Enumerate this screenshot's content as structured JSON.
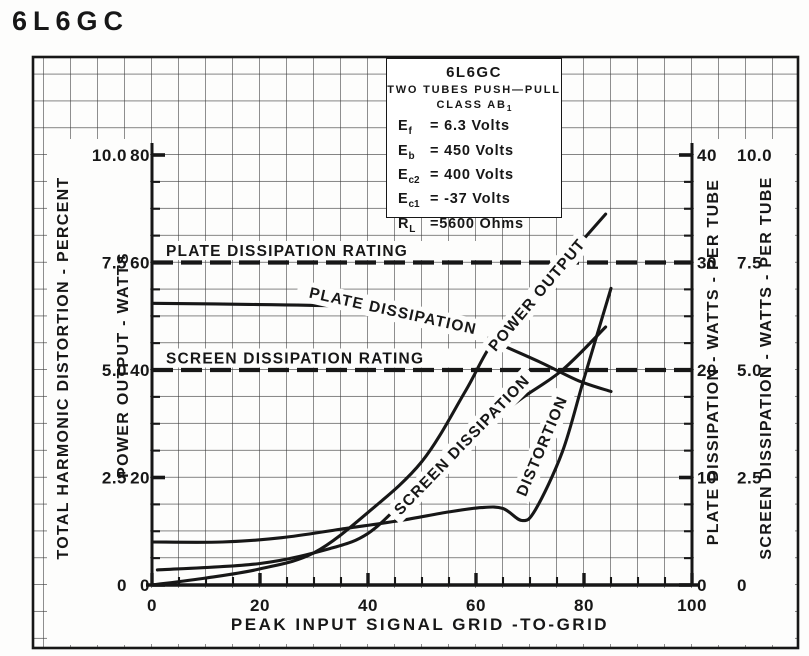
{
  "page_title": "6L6GC",
  "info_box": {
    "title": "6L6GC",
    "subtitle": "TWO TUBES PUSH—PULL",
    "class_label": "CLASS AB",
    "class_sub": "1",
    "conditions": [
      {
        "sym": "E",
        "sub": "f",
        "val": "= 6.3 Volts"
      },
      {
        "sym": "E",
        "sub": "b",
        "val": "= 450 Volts"
      },
      {
        "sym": "E",
        "sub": "c2",
        "val": "= 400 Volts"
      },
      {
        "sym": "E",
        "sub": "c1",
        "val": "= -37 Volts"
      },
      {
        "sym": "R",
        "sub": "L",
        "val": "=5600 Ohms"
      }
    ]
  },
  "axes": {
    "x": {
      "title": "PEAK INPUT SIGNAL GRID -TO-GRID",
      "ticks": [
        "0",
        "20",
        "40",
        "60",
        "80",
        "100"
      ]
    },
    "left_outer": {
      "title": "TOTAL HARMONIC DISTORTION - PERCENT",
      "ticks": [
        "0",
        "2.5",
        "5.0",
        "7.5",
        "10.0"
      ]
    },
    "left_inner": {
      "title": "POWER OUTPUT - WATTS",
      "ticks": [
        "0",
        "20",
        "40",
        "60",
        "80"
      ]
    },
    "right_inner": {
      "title": "PLATE DISSIPATION - WATTS - PER TUBE",
      "ticks": [
        "0",
        "10",
        "20",
        "30",
        "40"
      ]
    },
    "right_outer": {
      "title": "SCREEN DISSIPATION - WATTS - PER TUBE",
      "ticks": [
        "0",
        "2.5",
        "5.0",
        "7.5",
        "10.0"
      ]
    }
  },
  "chart_data": {
    "type": "line",
    "x": {
      "label": "PEAK INPUT SIGNAL GRID -TO-GRID",
      "range": [
        0,
        100
      ],
      "ticks": [
        0,
        20,
        40,
        60,
        80,
        100
      ]
    },
    "y_axes": [
      {
        "id": "power",
        "label": "POWER OUTPUT - WATTS",
        "range": [
          0,
          80
        ],
        "side": "left"
      },
      {
        "id": "distortion",
        "label": "TOTAL HARMONIC DISTORTION - PERCENT",
        "range": [
          0,
          10
        ],
        "side": "left"
      },
      {
        "id": "plate",
        "label": "PLATE DISSIPATION - WATTS - PER TUBE",
        "range": [
          0,
          40
        ],
        "side": "right"
      },
      {
        "id": "screen",
        "label": "SCREEN DISSIPATION - WATTS - PER TUBE",
        "range": [
          0,
          10
        ],
        "side": "right"
      }
    ],
    "grid": true,
    "ink_color": "#171717",
    "series": [
      {
        "name": "POWER OUTPUT",
        "axis": "power",
        "points": [
          [
            0,
            0
          ],
          [
            10,
            1.3
          ],
          [
            20,
            3
          ],
          [
            30,
            6
          ],
          [
            40,
            13.5
          ],
          [
            50,
            23
          ],
          [
            58,
            36
          ],
          [
            63,
            45
          ],
          [
            70,
            53
          ],
          [
            77,
            61
          ],
          [
            84,
            69
          ]
        ]
      },
      {
        "name": "PLATE DISSIPATION",
        "axis": "plate",
        "points": [
          [
            0,
            26.2
          ],
          [
            18,
            26.1
          ],
          [
            37,
            25.9
          ],
          [
            48,
            25.3
          ],
          [
            56,
            24.4
          ],
          [
            64,
            22.5
          ],
          [
            72,
            20.7
          ],
          [
            79,
            19.0
          ],
          [
            85,
            18.0
          ]
        ]
      },
      {
        "name": "SCREEN DISSIPATION",
        "axis": "screen",
        "points": [
          [
            1,
            0.35
          ],
          [
            20,
            0.5
          ],
          [
            33,
            0.85
          ],
          [
            40,
            1.2
          ],
          [
            47,
            2.0
          ],
          [
            53,
            2.7
          ],
          [
            60,
            3.5
          ],
          [
            68,
            4.3
          ],
          [
            76,
            5.0
          ],
          [
            84,
            6.0
          ]
        ]
      },
      {
        "name": "DISTORTION",
        "axis": "distortion",
        "points": [
          [
            0,
            1.0
          ],
          [
            13,
            1.0
          ],
          [
            24,
            1.1
          ],
          [
            35,
            1.3
          ],
          [
            46,
            1.5
          ],
          [
            55,
            1.7
          ],
          [
            61,
            1.8
          ],
          [
            65,
            1.78
          ],
          [
            68.5,
            1.5
          ],
          [
            71,
            1.75
          ],
          [
            76,
            3.1
          ],
          [
            80,
            4.8
          ],
          [
            85,
            6.9
          ]
        ]
      }
    ],
    "reference_lines": [
      {
        "name": "PLATE DISSIPATION RATING",
        "axis": "plate",
        "value": 30,
        "style": "dashed"
      },
      {
        "name": "SCREEN DISSIPATION RATING",
        "axis": "screen",
        "value": 5,
        "style": "dashed"
      }
    ]
  }
}
